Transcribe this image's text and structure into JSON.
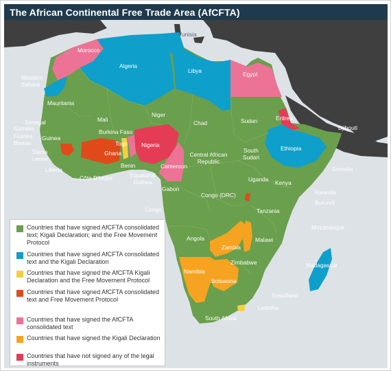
{
  "title": "The African Continental Free Trade Area (AfCFTA)",
  "colors": {
    "green": "#6a9f4d",
    "blue": "#0e9fcb",
    "yellow": "#f4d03f",
    "orange_red": "#e04a1a",
    "pink": "#ec7396",
    "orange": "#f5a321",
    "red": "#e43c55",
    "sea": "#dde2e7",
    "other_land": "#3f3f3f",
    "title_bar": "#1f3a4d"
  },
  "legend": [
    {
      "color": "#6a9f4d",
      "label": "Countries that have signed AfCFTA consolidated text; Kigali Declaration; and the Free Movement Protocol"
    },
    {
      "color": "#0e9fcb",
      "label": "Countries that have signed AfCFTA consolidated text and the Kigali Declaration"
    },
    {
      "color": "#f4d03f",
      "label": "Countries that have signed the AfCFTA Kigali Declaration and the Free Movement Protocol"
    },
    {
      "color": "#e04a1a",
      "label": "Countries that have signed AfCFTA consolidated text and Free Movement Protocol"
    },
    {
      "color": "#ec7396",
      "label": "Countries that have signed the AfCFTA consolidated text"
    },
    {
      "color": "#f5a321",
      "label": "Countries that have signed the Kigali Declaration"
    },
    {
      "color": "#e43c55",
      "label": "Countries that have not signed any of the legal instruments"
    }
  ],
  "countries": [
    {
      "name": "Tunisia",
      "status": "blue"
    },
    {
      "name": "Morocco",
      "status": "pink"
    },
    {
      "name": "Algeria",
      "status": "blue"
    },
    {
      "name": "Libya",
      "status": "blue"
    },
    {
      "name": "Egypt",
      "status": "pink"
    },
    {
      "name": "Western Sahara",
      "status": "blue"
    },
    {
      "name": "Mauritania",
      "status": "green"
    },
    {
      "name": "Mali",
      "status": "green"
    },
    {
      "name": "Niger",
      "status": "green"
    },
    {
      "name": "Chad",
      "status": "green"
    },
    {
      "name": "Sudan",
      "status": "green"
    },
    {
      "name": "Eritrea",
      "status": "red"
    },
    {
      "name": "Djibouti",
      "status": "green"
    },
    {
      "name": "Senegal",
      "status": "green"
    },
    {
      "name": "Gambia",
      "status": "green"
    },
    {
      "name": "Guinea Bissau",
      "status": "green"
    },
    {
      "name": "Guinea",
      "status": "green"
    },
    {
      "name": "Burkina Faso",
      "status": "green"
    },
    {
      "name": "Nigeria",
      "status": "red"
    },
    {
      "name": "Ethiopia",
      "status": "blue"
    },
    {
      "name": "Sierra Leone",
      "status": "orange_red"
    },
    {
      "name": "Ghana",
      "status": "orange_red"
    },
    {
      "name": "Togo",
      "status": "yellow"
    },
    {
      "name": "Benin",
      "status": "pink"
    },
    {
      "name": "Cameroon",
      "status": "pink"
    },
    {
      "name": "Central African Republic",
      "status": "green"
    },
    {
      "name": "South Sudan",
      "status": "green"
    },
    {
      "name": "Somalia",
      "status": "green"
    },
    {
      "name": "Liberia",
      "status": "green"
    },
    {
      "name": "Côte D'Ivoire",
      "status": "green"
    },
    {
      "name": "Equatorial Guinea",
      "status": "green"
    },
    {
      "name": "Gabon",
      "status": "green"
    },
    {
      "name": "Uganda",
      "status": "green"
    },
    {
      "name": "Kenya",
      "status": "green"
    },
    {
      "name": "Rwanda",
      "status": "green"
    },
    {
      "name": "Burundi",
      "status": "orange_red"
    },
    {
      "name": "Congo (DRC)",
      "status": "green"
    },
    {
      "name": "Congo",
      "status": "green"
    },
    {
      "name": "Tanzania",
      "status": "green"
    },
    {
      "name": "Angola",
      "status": "green"
    },
    {
      "name": "Zambia",
      "status": "orange"
    },
    {
      "name": "Malawi",
      "status": "orange"
    },
    {
      "name": "Mozambique",
      "status": "green"
    },
    {
      "name": "Madagascar",
      "status": "blue"
    },
    {
      "name": "Zimbabwe",
      "status": "green"
    },
    {
      "name": "Namibia",
      "status": "orange"
    },
    {
      "name": "Botswana",
      "status": "orange"
    },
    {
      "name": "Swaziland",
      "status": "green"
    },
    {
      "name": "Lesotho",
      "status": "yellow"
    },
    {
      "name": "South Africa",
      "status": "green"
    }
  ],
  "labels": {
    "tunisia": "Tunisia",
    "morocco": "Morocco",
    "algeria": "Algeria",
    "libya": "Libya",
    "egypt": "Egypt",
    "western_sahara": "Western Sahara",
    "mauritania": "Mauritania",
    "mali": "Mali",
    "niger": "Niger",
    "chad": "Chad",
    "sudan": "Sudan",
    "eritrea": "Eritrea",
    "djibouti": "Djibouti",
    "senegal": "Senegal",
    "gambia": "Gambia",
    "guinea_bissau": "Guinea Bissau",
    "guinea": "Guinea",
    "burkina_faso": "Burkina Faso",
    "nigeria": "Nigeria",
    "ethiopia": "Ethiopia",
    "sierra_leone": "Sierra Leone",
    "ghana": "Ghana",
    "togo": "Togo",
    "benin": "Benin",
    "cameroon": "Cameroon",
    "car": "Central African Republic",
    "south_sudan": "South Sudan",
    "somalia": "Somalia",
    "liberia": "Liberia",
    "cote_divoire": "Côte D'Ivoire",
    "eq_guinea": "Equatorial Guinea",
    "gabon": "Gabon",
    "uganda": "Uganda",
    "kenya": "Kenya",
    "rwanda": "Rwanda",
    "burundi": "Burundi",
    "drc": "Congo (DRC)",
    "congo": "Congo",
    "tanzania": "Tanzania",
    "angola": "Angola",
    "zambia": "Zambia",
    "malawi": "Malawi",
    "mozambique": "Mozambique",
    "madagascar": "Madagascar",
    "zimbabwe": "Zimbabwe",
    "namibia": "Namibia",
    "botswana": "Botswana",
    "swaziland": "Swaziland",
    "lesotho": "Lesotho",
    "south_africa": "South Africa"
  }
}
